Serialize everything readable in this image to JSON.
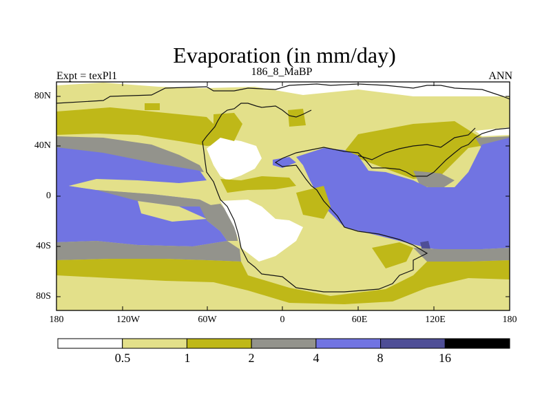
{
  "title": "Evaporation (in mm/day)",
  "left_label": "Expt = texPl1",
  "center_label": "186_8_MaBP",
  "right_label": "ANN",
  "lat_ticks": [
    "80N",
    "40N",
    "0",
    "40S",
    "80S"
  ],
  "lon_ticks": [
    "180",
    "120W",
    "60W",
    "0",
    "60E",
    "120E",
    "180"
  ],
  "colorbar": {
    "colors": [
      "#ffffff",
      "#e3e08a",
      "#bfb818",
      "#93938c",
      "#7174e2",
      "#4e4e96",
      "#000000"
    ],
    "labels": [
      "0.5",
      "1",
      "2",
      "4",
      "8",
      "16"
    ]
  },
  "map": {
    "lon_range": [
      -180,
      180
    ],
    "lat_range": [
      -90,
      90
    ],
    "fill_colors": {
      "white": "#ffffff",
      "light": "#e3e08a",
      "olive": "#bfb818",
      "gray": "#93938c",
      "blue": "#7174e2",
      "dark": "#4e4e96"
    }
  }
}
